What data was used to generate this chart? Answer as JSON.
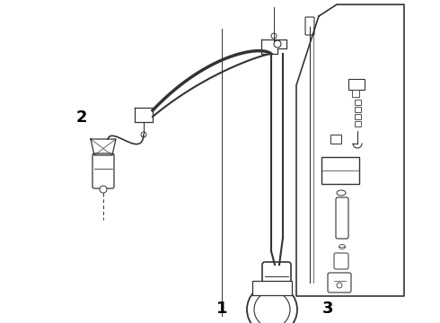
{
  "background_color": "#ffffff",
  "line_color": "#333333",
  "label_color": "#000000",
  "fig_width": 4.9,
  "fig_height": 3.6,
  "dpi": 100,
  "label_1": [
    0.505,
    0.955
  ],
  "label_2": [
    0.185,
    0.365
  ],
  "label_3": [
    0.745,
    0.955
  ],
  "label_fontsize": 13
}
